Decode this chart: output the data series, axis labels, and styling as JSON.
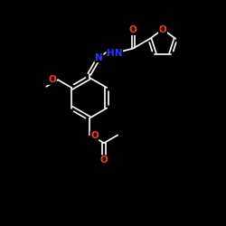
{
  "background_color": "#000000",
  "bond_color": "#ffffff",
  "O_color": "#ff3333",
  "N_color": "#3333ff",
  "lw": 1.2,
  "fs": 7.5,
  "xlim": [
    0,
    10
  ],
  "ylim": [
    0,
    10
  ]
}
